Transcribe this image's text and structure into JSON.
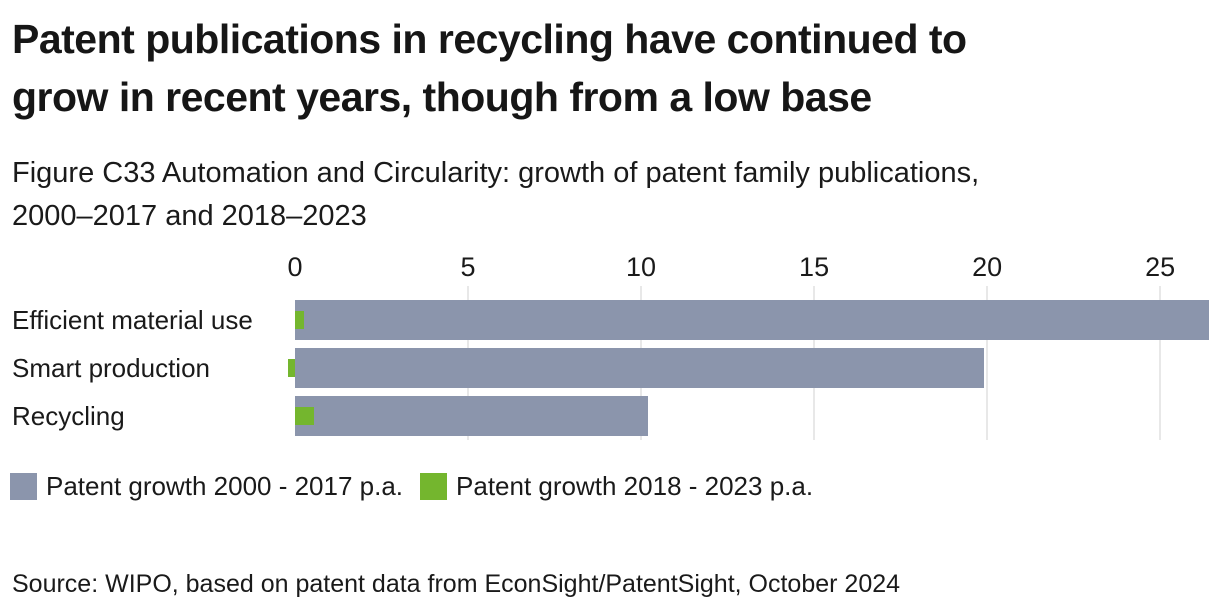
{
  "header": {
    "title": "Patent publications in recycling have continued to\ngrow in recent years, though from a low base",
    "subtitle": "Figure C33 Automation and Circularity: growth of patent family publications,\n2000–2017 and 2018–2023"
  },
  "chart_data": {
    "type": "bar",
    "orientation": "horizontal",
    "categories": [
      "Efficient material use",
      "Smart production",
      "Recycling"
    ],
    "series": [
      {
        "name": "Patent growth 2000 - 2017 p.a.",
        "color": "#8B95AC",
        "values": [
          26.4,
          19.9,
          10.2
        ]
      },
      {
        "name": "Patent growth 2018 - 2023 p.a.",
        "color": "#74B62E",
        "values": [
          0.25,
          -0.2,
          0.55
        ]
      }
    ],
    "x_ticks": [
      0,
      5,
      10,
      15,
      20,
      25
    ],
    "xlim": [
      0,
      26.73
    ],
    "grid": "vertical light-gray gridlines at ticks 5,10,15,20,25; none at 0",
    "legend_position": "bottom-left",
    "title": "",
    "xlabel": "",
    "ylabel": ""
  },
  "source": {
    "text": "Source: WIPO, based on patent data from EconSight/PatentSight, October 2024"
  },
  "colors": {
    "bar_2000_2017": "#8B95AC",
    "bar_2018_2023": "#74B62E",
    "gridline": "#E8E8E8",
    "text": "#1A1A1A",
    "background": "#FFFFFF"
  }
}
